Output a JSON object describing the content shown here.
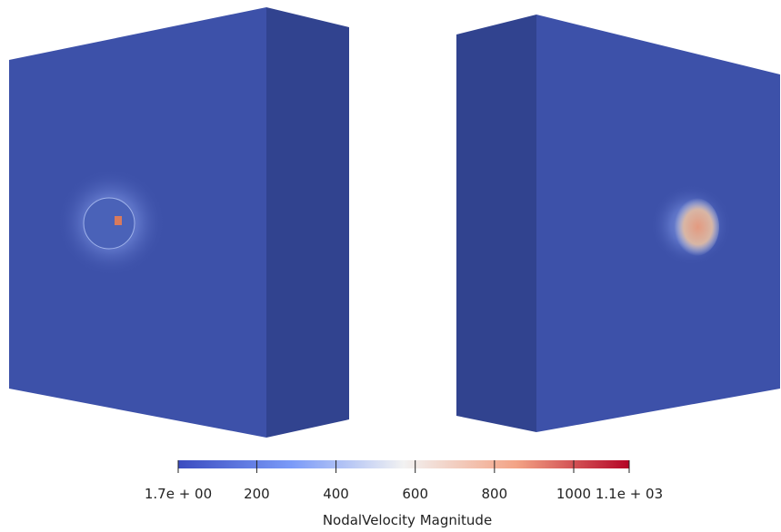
{
  "colorbar": {
    "title": "NodalVelocity Magnitude",
    "range": [
      1.7,
      1140
    ],
    "ticks": [
      {
        "value": 1.7,
        "label": "1.7e + 00"
      },
      200,
      400,
      600,
      800,
      1000,
      {
        "value": 1140,
        "label": "1.1e + 03"
      }
    ]
  }
}
